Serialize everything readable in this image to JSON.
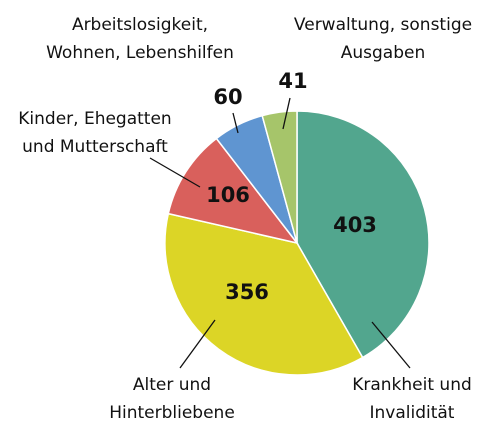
{
  "chart_data": {
    "type": "pie",
    "categories": [
      [
        "Krankheit und",
        "Invalidität"
      ],
      [
        "Alter und",
        "Hinterbliebene"
      ],
      [
        "Kinder, Ehegatten",
        "und Mutterschaft"
      ],
      [
        "Arbeitslosigkeit,",
        "Wohnen, Lebenshilfen"
      ],
      [
        "Verwaltung, sonstige",
        "Ausgaben"
      ]
    ],
    "values": [
      403,
      356,
      106,
      60,
      41
    ],
    "colors": [
      "#52a68e",
      "#dcd526",
      "#d9605c",
      "#5f95d1",
      "#a6c56a"
    ]
  }
}
